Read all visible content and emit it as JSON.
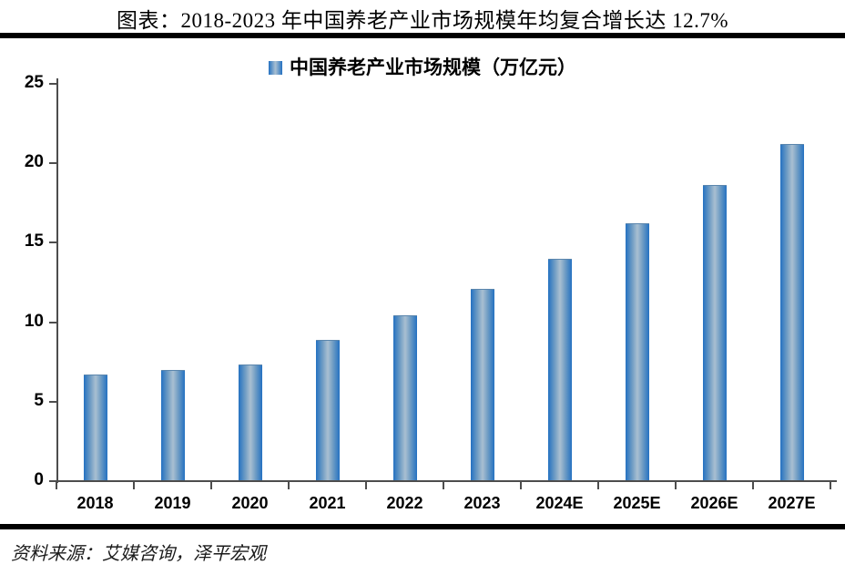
{
  "header": {
    "title": "图表：2018-2023 年中国养老产业市场规模年均复合增长达 12.7%"
  },
  "footer": {
    "source": "资料来源：艾媒咨询，泽平宏观"
  },
  "colors": {
    "bar_edge": "#2471c1",
    "bar_mid": "#a9bfd1",
    "axis": "#4d4d4d",
    "rule": "#000000"
  },
  "chart_data": {
    "type": "bar",
    "title": "图表：2018-2023 年中国养老产业市场规模年均复合增长达 12.7%",
    "legend": "中国养老产业市场规模（万亿元）",
    "legend_position": "top-center",
    "categories": [
      "2018",
      "2019",
      "2020",
      "2021",
      "2022",
      "2023",
      "2024E",
      "2025E",
      "2026E",
      "2027E"
    ],
    "values": [
      6.6,
      6.9,
      7.2,
      8.8,
      10.3,
      12.0,
      13.9,
      16.1,
      18.5,
      21.1
    ],
    "xlabel": "",
    "ylabel": "",
    "ylim": [
      0,
      25
    ],
    "yticks": [
      0,
      5,
      10,
      15,
      20,
      25
    ],
    "grid": false
  }
}
